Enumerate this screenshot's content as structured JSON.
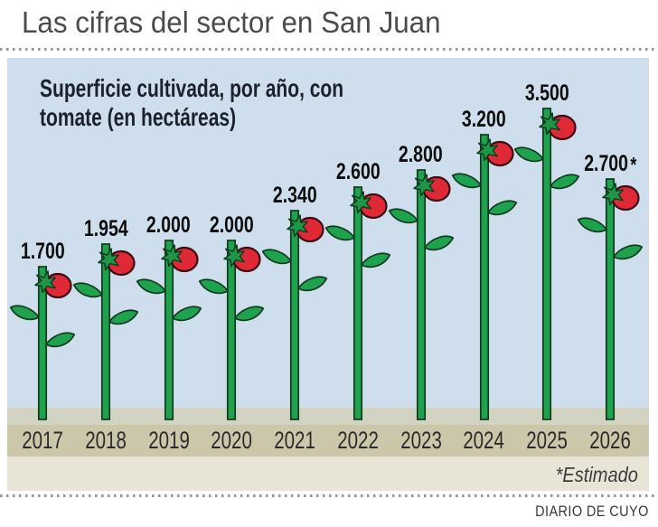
{
  "title": "Las cifras del sector en San Juan",
  "source": "DIARIO DE CUYO",
  "chart": {
    "subtitle_line1": "Superficie cultivada, por año, con",
    "subtitle_line2": "tomate (en hectáreas)",
    "footnote": "*Estimado"
  },
  "chart_data": {
    "type": "bar",
    "style": "pictogram-tomato-plant",
    "title": "Superficie cultivada, por año, con tomate (en hectáreas)",
    "categories": [
      "2017",
      "2018",
      "2019",
      "2020",
      "2021",
      "2022",
      "2023",
      "2024",
      "2025",
      "2026"
    ],
    "values": [
      1700,
      1954,
      2000,
      2000,
      2340,
      2600,
      2800,
      3200,
      3500,
      2700
    ],
    "value_labels": [
      "1.700",
      "1.954",
      "2.000",
      "2.000",
      "2.340",
      "2.600",
      "2.800",
      "3.200",
      "3.500",
      "2.700*"
    ],
    "estimated_category": "2026",
    "footnote": "*Estimado",
    "unit": "hectáreas",
    "ylim": [
      0,
      3500
    ],
    "grid": false,
    "legend": false
  },
  "colors": {
    "sky": "#cfdeed",
    "stem_green": "#1fa24d",
    "leaf_green": "#1fa24d",
    "calyx_green": "#1d9647",
    "outline_dark": "#123a1e",
    "tomato_red": "#e02936",
    "tomato_outline": "#3a0d12",
    "ground_top": "#d2d3c1",
    "ground_mid": "#ccc6ab",
    "ground_bottom": "#e8e5d6",
    "title_color": "#4b4b4b",
    "subtitle_color": "#1b222b",
    "value_label_color": "#0d0d0d",
    "year_color": "#2b2b2b",
    "dots_color": "#949494"
  }
}
